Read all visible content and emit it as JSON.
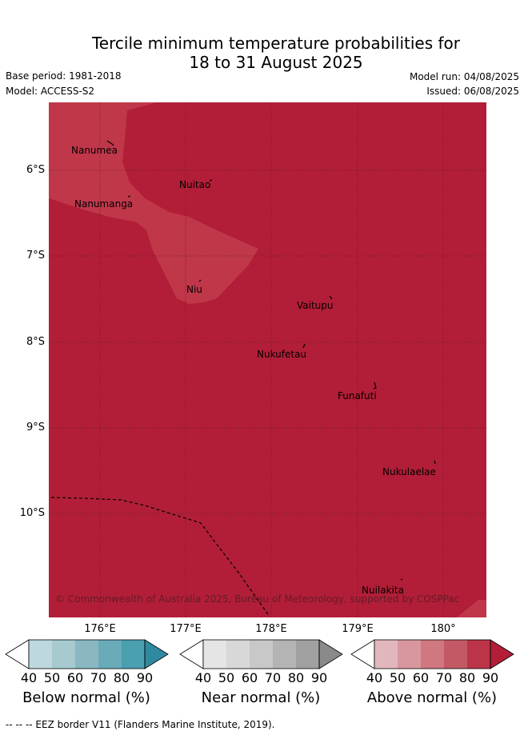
{
  "title": {
    "line1": "Tercile minimum temperature probabilities for",
    "line2": "18 to 31 August 2025"
  },
  "info": {
    "base_period": "Base period: 1981-2018",
    "model": "Model: ACCESS-S2",
    "model_run": "Model run: 04/08/2025",
    "issued": "Issued: 06/08/2025"
  },
  "map": {
    "latitude_labels": [
      "6°S",
      "7°S",
      "8°S",
      "9°S",
      "10°S"
    ],
    "longitude_labels": [
      "176°E",
      "177°E",
      "178°E",
      "179°E",
      "180°"
    ],
    "places": [
      "Nanumea",
      "Nuitao",
      "Nanumanga",
      "Niu",
      "Vaitupu",
      "Nukufetau",
      "Funafuti",
      "Nukulaelae",
      "Nuilakita"
    ],
    "credit": "© Commonwealth of Australia 2025, Bureau of Meteorology, supported by COSPPac",
    "colors": {
      "dominant": "#b21e37",
      "lighter_region": "#c0374a",
      "border_line": "#000000"
    }
  },
  "legend": {
    "ticks": [
      "40",
      "50",
      "60",
      "70",
      "80",
      "90"
    ],
    "below": {
      "label": "Below normal (%)",
      "colors": [
        "#ffffff",
        "#bdd8df",
        "#a6cacf",
        "#89b8c2",
        "#6aabb9",
        "#4a9fb1",
        "#2f8aa0"
      ]
    },
    "near": {
      "label": "Near normal (%)",
      "colors": [
        "#ffffff",
        "#e5e5e5",
        "#d8d8d8",
        "#c8c8c8",
        "#b4b4b4",
        "#a0a0a0",
        "#8a8a8a"
      ]
    },
    "above": {
      "label": "Above normal (%)",
      "colors": [
        "#ffffff",
        "#e1b7bd",
        "#d8979e",
        "#d07780",
        "#c45966",
        "#bb3447",
        "#b21e37"
      ]
    }
  },
  "footer": "--  --  -- EEZ border V11 (Flanders Marine Institute, 2019)."
}
